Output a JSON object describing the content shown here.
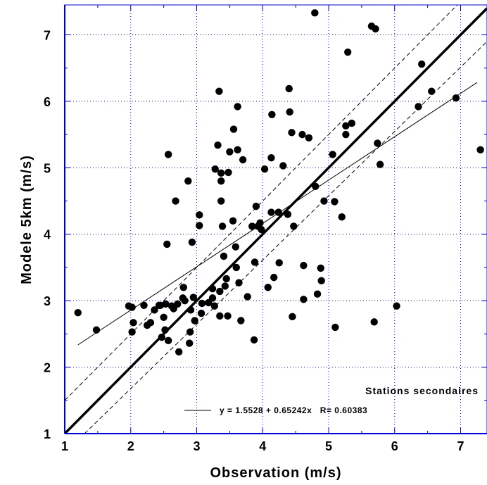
{
  "chart_data": {
    "type": "scatter",
    "title": "",
    "xlabel": "Observation (m/s)",
    "ylabel": "Modele 5km (m/s)",
    "xlim": [
      1,
      7.4
    ],
    "ylim": [
      1,
      7.45
    ],
    "xticks": [
      "1",
      "2",
      "3",
      "4",
      "5",
      "6",
      "7"
    ],
    "yticks": [
      "1",
      "2",
      "3",
      "4",
      "5",
      "6",
      "7"
    ],
    "grid": true,
    "grid_style": "dotted",
    "colors": {
      "points": "#000000",
      "grid": "#0000cc",
      "axes": "#0000cc"
    },
    "legend": {
      "position": "bottom-right",
      "title": "Stations secondaires",
      "entry": "y = 1.5528 + 0.65242x   R= 0.60383"
    },
    "lines": [
      {
        "kind": "identity",
        "style": "thick-solid",
        "x": [
          1,
          7.4
        ],
        "y": [
          1,
          7.4
        ]
      },
      {
        "kind": "regression",
        "style": "thin-solid",
        "intercept": 1.5528,
        "slope": 0.65242,
        "x": [
          1.2,
          7.25
        ]
      },
      {
        "kind": "upper-band",
        "style": "dashed",
        "x": [
          1,
          7.4
        ],
        "y": [
          1.5,
          7.9
        ]
      },
      {
        "kind": "lower-band",
        "style": "dashed",
        "x": [
          1.3,
          7.4
        ],
        "y": [
          1,
          6.9
        ]
      }
    ],
    "points": [
      [
        1.2,
        2.82
      ],
      [
        1.48,
        2.56
      ],
      [
        1.97,
        2.92
      ],
      [
        2.02,
        2.53
      ],
      [
        2.04,
        2.67
      ],
      [
        2.02,
        2.9
      ],
      [
        2.2,
        2.93
      ],
      [
        2.25,
        2.63
      ],
      [
        2.3,
        2.67
      ],
      [
        2.36,
        2.86
      ],
      [
        2.43,
        2.93
      ],
      [
        2.45,
        2.93
      ],
      [
        2.47,
        2.45
      ],
      [
        2.5,
        2.75
      ],
      [
        2.52,
        2.56
      ],
      [
        2.53,
        2.95
      ],
      [
        2.55,
        3.85
      ],
      [
        2.57,
        2.4
      ],
      [
        2.57,
        5.2
      ],
      [
        2.62,
        2.92
      ],
      [
        2.65,
        2.88
      ],
      [
        2.68,
        4.5
      ],
      [
        2.71,
        2.95
      ],
      [
        2.73,
        2.23
      ],
      [
        2.79,
        3.04
      ],
      [
        2.8,
        3.2
      ],
      [
        2.82,
        3.0
      ],
      [
        2.87,
        4.8
      ],
      [
        2.89,
        2.36
      ],
      [
        2.9,
        2.53
      ],
      [
        2.91,
        2.86
      ],
      [
        2.93,
        3.88
      ],
      [
        2.95,
        3.05
      ],
      [
        2.97,
        2.7
      ],
      [
        3.04,
        4.13
      ],
      [
        3.04,
        4.29
      ],
      [
        3.07,
        2.81
      ],
      [
        3.08,
        2.96
      ],
      [
        3.18,
        2.97
      ],
      [
        3.24,
        3.04
      ],
      [
        3.24,
        3.18
      ],
      [
        3.27,
        2.92
      ],
      [
        3.28,
        4.98
      ],
      [
        3.32,
        5.34
      ],
      [
        3.34,
        6.15
      ],
      [
        3.35,
        2.77
      ],
      [
        3.35,
        3.14
      ],
      [
        3.37,
        4.92
      ],
      [
        3.37,
        4.8
      ],
      [
        3.37,
        4.5
      ],
      [
        3.39,
        4.12
      ],
      [
        3.41,
        3.67
      ],
      [
        3.43,
        3.22
      ],
      [
        3.45,
        3.33
      ],
      [
        3.47,
        2.77
      ],
      [
        3.48,
        4.93
      ],
      [
        3.5,
        5.24
      ],
      [
        3.55,
        4.2
      ],
      [
        3.56,
        5.58
      ],
      [
        3.59,
        3.81
      ],
      [
        3.6,
        3.5
      ],
      [
        3.62,
        5.92
      ],
      [
        3.62,
        5.27
      ],
      [
        3.64,
        3.27
      ],
      [
        3.67,
        2.7
      ],
      [
        3.7,
        5.12
      ],
      [
        3.77,
        3.06
      ],
      [
        3.84,
        4.12
      ],
      [
        3.87,
        2.41
      ],
      [
        3.88,
        3.58
      ],
      [
        3.9,
        4.42
      ],
      [
        3.93,
        4.12
      ],
      [
        3.96,
        4.17
      ],
      [
        3.98,
        4.07
      ],
      [
        4.03,
        4.98
      ],
      [
        4.08,
        3.2
      ],
      [
        4.13,
        5.15
      ],
      [
        4.13,
        4.33
      ],
      [
        4.14,
        5.8
      ],
      [
        4.17,
        3.35
      ],
      [
        4.24,
        4.33
      ],
      [
        4.25,
        3.57
      ],
      [
        4.31,
        5.03
      ],
      [
        4.38,
        4.3
      ],
      [
        4.4,
        6.19
      ],
      [
        4.41,
        5.84
      ],
      [
        4.44,
        5.53
      ],
      [
        4.45,
        2.76
      ],
      [
        4.47,
        4.12
      ],
      [
        4.6,
        5.5
      ],
      [
        4.62,
        3.53
      ],
      [
        4.62,
        3.02
      ],
      [
        4.7,
        5.45
      ],
      [
        4.79,
        7.33
      ],
      [
        4.8,
        4.72
      ],
      [
        4.83,
        3.1
      ],
      [
        4.88,
        3.49
      ],
      [
        4.89,
        3.3
      ],
      [
        4.93,
        4.5
      ],
      [
        5.06,
        5.2
      ],
      [
        5.09,
        4.49
      ],
      [
        5.1,
        2.6
      ],
      [
        5.2,
        4.26
      ],
      [
        5.26,
        5.63
      ],
      [
        5.26,
        5.5
      ],
      [
        5.29,
        6.74
      ],
      [
        5.35,
        5.67
      ],
      [
        5.65,
        7.13
      ],
      [
        5.69,
        2.68
      ],
      [
        5.71,
        7.09
      ],
      [
        5.74,
        5.37
      ],
      [
        5.78,
        5.05
      ],
      [
        6.03,
        2.92
      ],
      [
        6.36,
        5.92
      ],
      [
        6.41,
        6.56
      ],
      [
        6.56,
        6.15
      ],
      [
        6.93,
        6.05
      ],
      [
        7.3,
        5.27
      ]
    ]
  }
}
